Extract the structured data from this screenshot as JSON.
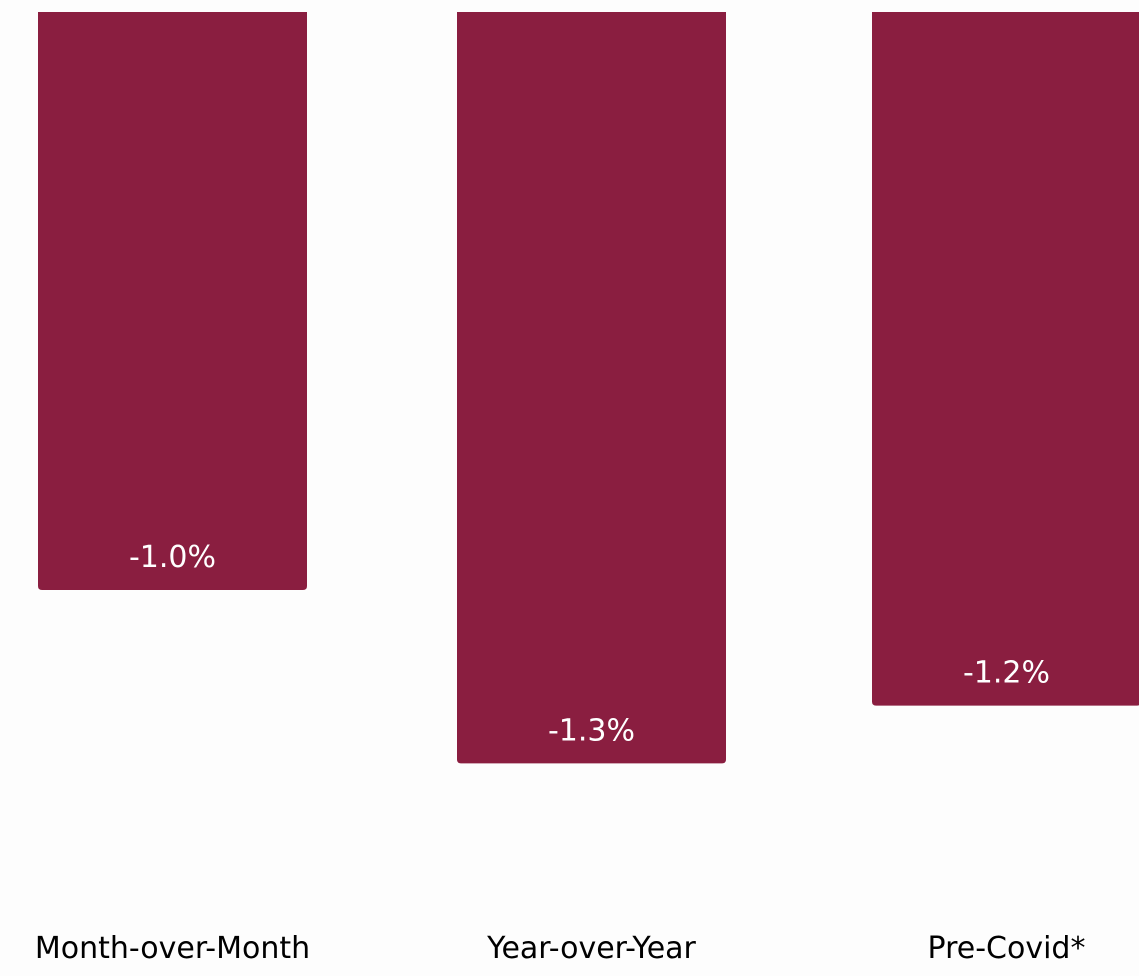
{
  "chart_data": {
    "type": "bar",
    "categories": [
      "Month-over-Month",
      "Year-over-Year",
      "Pre-Covid*"
    ],
    "values": [
      -1.0,
      -1.3,
      -1.2
    ],
    "data_labels": [
      "-1.0%",
      "-1.3%",
      "-1.2%"
    ],
    "title": "",
    "xlabel": "",
    "ylabel": "",
    "ylim": [
      -1.35,
      0
    ],
    "grid": false,
    "legend": "none",
    "bar_color": "#8a1e40",
    "label_color": "#ffffff",
    "category_color": "#000000"
  }
}
